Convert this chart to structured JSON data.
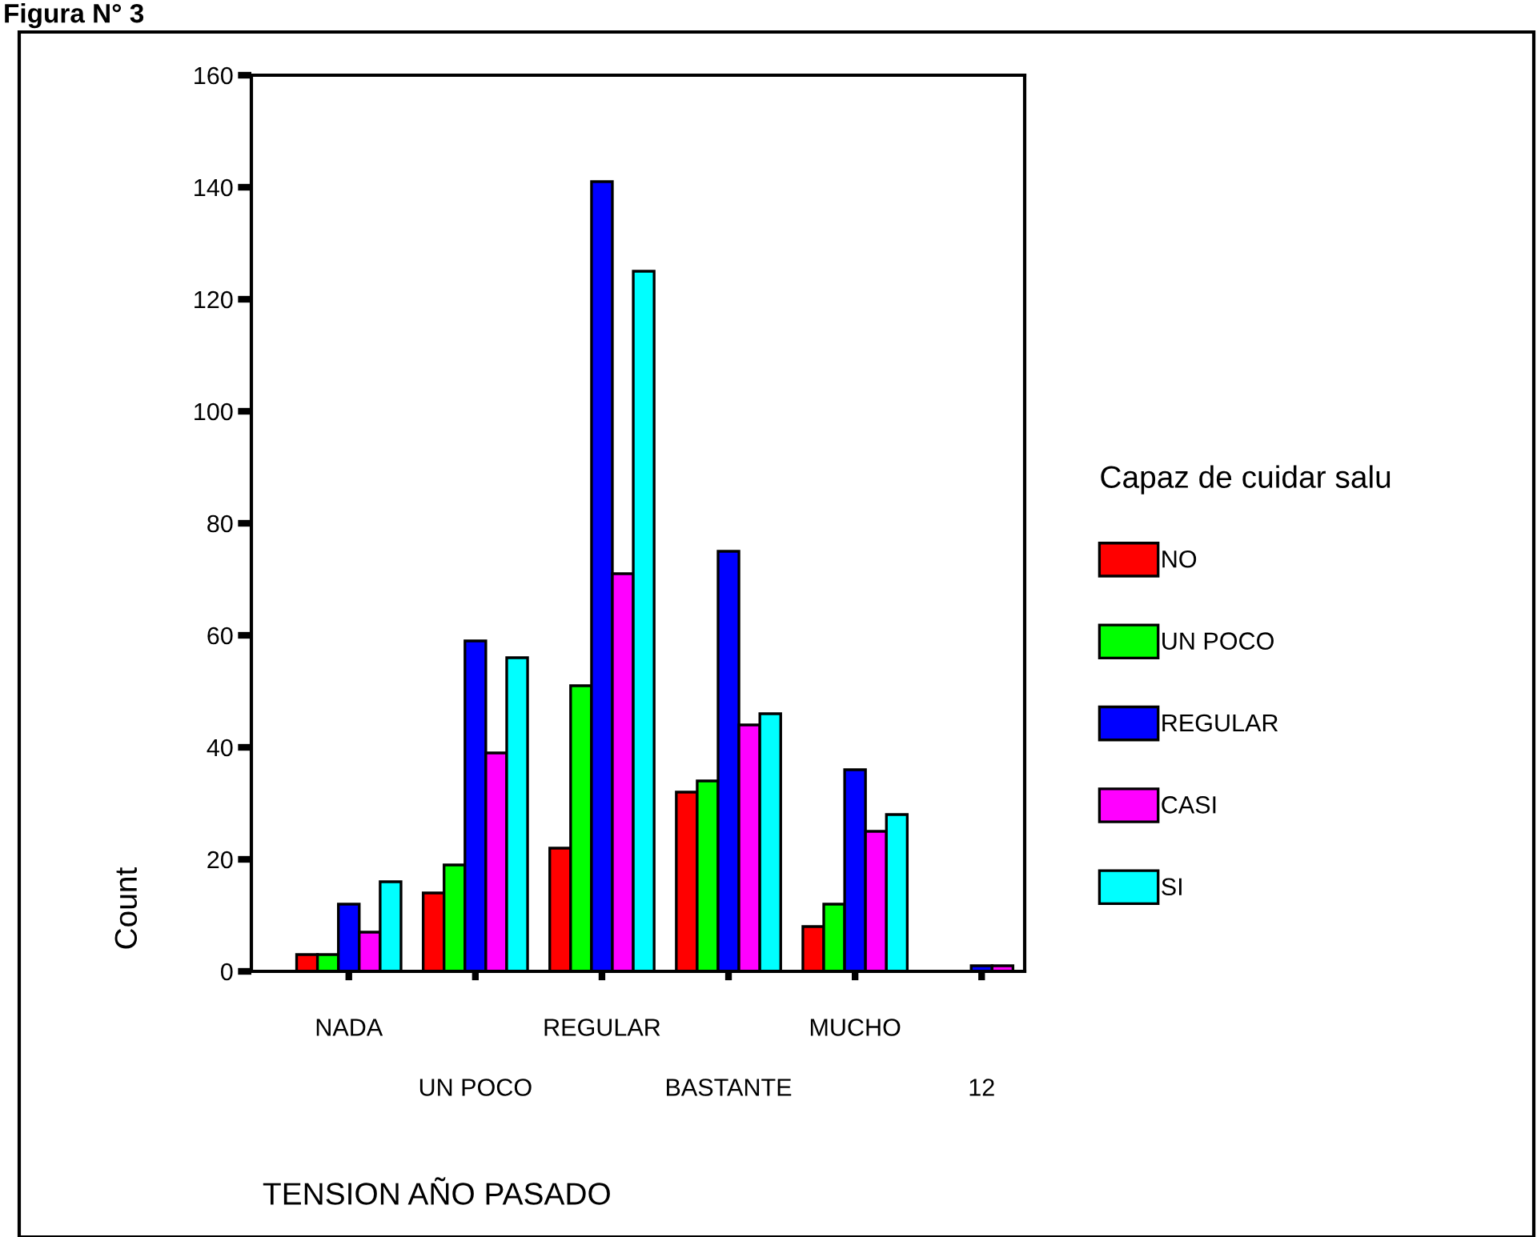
{
  "chart_data": {
    "type": "bar",
    "title": "Figura N° 3",
    "xlabel": "TENSION AÑO PASADO",
    "ylabel": "Count",
    "legend_title": "Capaz de cuidar salu",
    "categories": [
      "NADA",
      "UN POCO",
      "REGULAR",
      "BASTANTE",
      "MUCHO",
      "12"
    ],
    "series": [
      {
        "name": "NO",
        "color": "#ff0000",
        "values": [
          3,
          14,
          22,
          32,
          8,
          null
        ]
      },
      {
        "name": "UN POCO",
        "color": "#00ff00",
        "values": [
          3,
          19,
          51,
          34,
          12,
          null
        ]
      },
      {
        "name": "REGULAR",
        "color": "#0000ff",
        "values": [
          12,
          59,
          141,
          75,
          36,
          1
        ]
      },
      {
        "name": "CASI",
        "color": "#ff00ff",
        "values": [
          7,
          39,
          71,
          44,
          25,
          1
        ]
      },
      {
        "name": "SI",
        "color": "#00ffff",
        "values": [
          16,
          56,
          125,
          46,
          28,
          null
        ]
      }
    ],
    "ylim": [
      0,
      160
    ],
    "yticks": [
      0,
      20,
      40,
      60,
      80,
      100,
      120,
      140,
      160
    ],
    "grid": false,
    "legend": "right"
  }
}
